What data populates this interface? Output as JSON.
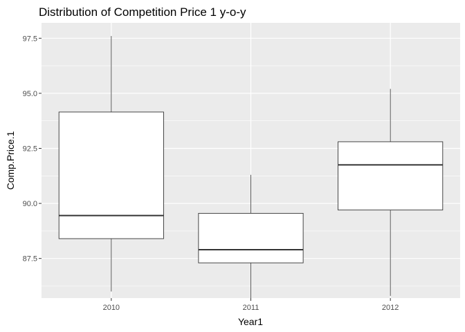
{
  "chart_data": {
    "type": "boxplot",
    "title": "Distribution of Competition Price 1 y-o-y",
    "xlabel": "Year1",
    "ylabel": "Comp.Price.1",
    "ylim": [
      85.7,
      98.2
    ],
    "yticks": [
      87.5,
      90.0,
      92.5,
      95.0,
      97.5
    ],
    "ytick_labels": [
      "87.5",
      "90.0",
      "92.5",
      "95.0",
      "97.5"
    ],
    "categories": [
      "2010",
      "2011",
      "2012"
    ],
    "boxes": [
      {
        "category": "2010",
        "min": 86.0,
        "q1": 88.4,
        "median": 89.45,
        "q3": 94.15,
        "max": 97.6
      },
      {
        "category": "2011",
        "min": 85.7,
        "q1": 87.3,
        "median": 87.9,
        "q3": 89.55,
        "max": 91.3
      },
      {
        "category": "2012",
        "min": 85.8,
        "q1": 89.7,
        "median": 91.75,
        "q3": 92.8,
        "max": 95.2
      }
    ],
    "grid": true,
    "colors": {
      "panel": "#ebebeb",
      "grid": "#ffffff",
      "box_fill": "#ffffff",
      "box_line": "#333333"
    }
  }
}
